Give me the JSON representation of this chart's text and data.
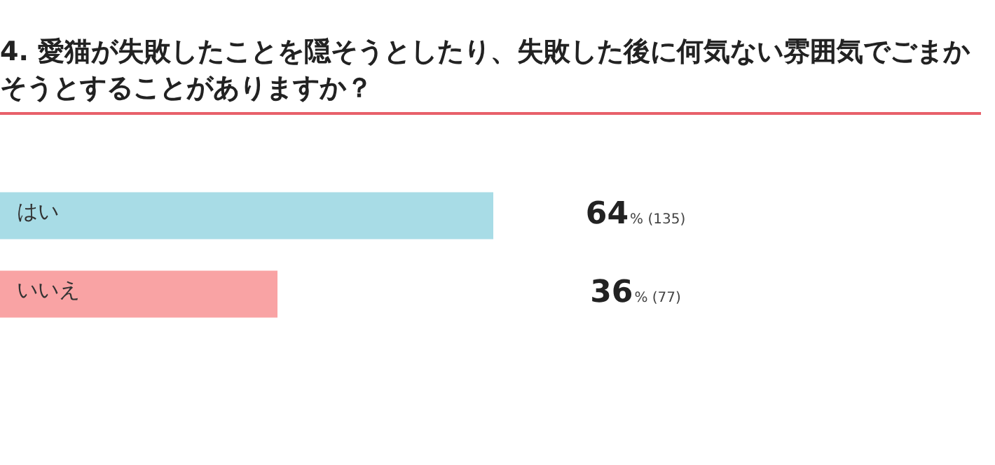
{
  "chart_data": {
    "type": "bar",
    "orientation": "horizontal",
    "title": "4. 愛猫が失敗したことを隠そうとしたり、失敗した後に何気ない雰囲気でごまかそうとすることがありますか？",
    "categories": [
      "はい",
      "いいえ"
    ],
    "values": [
      64,
      36
    ],
    "colors": [
      "#a8dce6",
      "#f9a3a4"
    ],
    "value_labels": [
      "64% (135)",
      "36% (77)"
    ]
  }
}
